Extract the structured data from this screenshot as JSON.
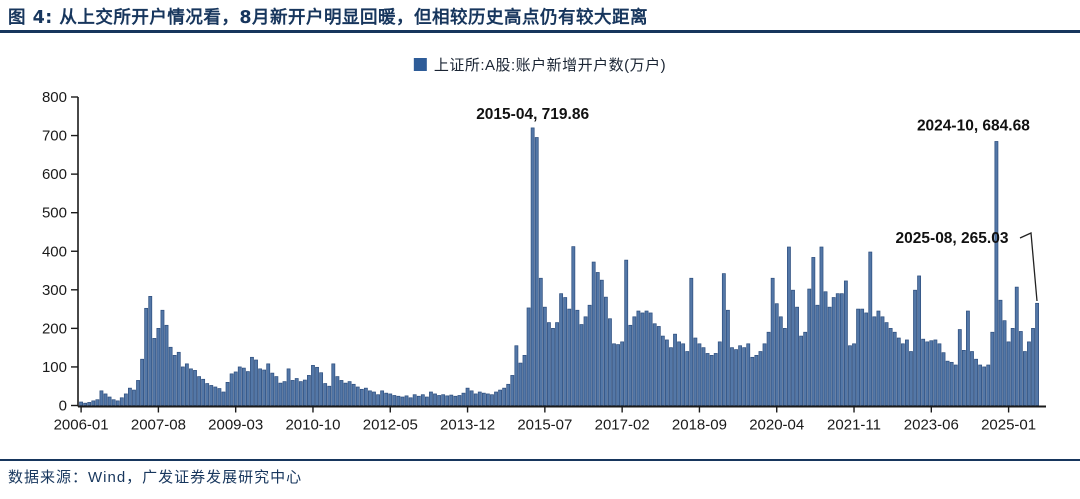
{
  "title": "图 4: 从上交所开户情况看，8月新开户明显回暖，但相较历史高点仍有较大距离",
  "legend": "上证所:A股:账户新增开户数(万户)",
  "source": "数据来源：Wind，广发证券发展研究中心",
  "accent_color": "#17365d",
  "chart_data": {
    "type": "bar",
    "title": "",
    "series_name": "上证所:A股:账户新增开户数(万户)",
    "unit": "万户",
    "start_month": "2006-01",
    "end_month": "2025-08",
    "ylim": [
      0,
      800
    ],
    "y_ticks": [
      0,
      100,
      200,
      300,
      400,
      500,
      600,
      700,
      800
    ],
    "x_tick_labels": [
      "2006-01",
      "2007-08",
      "2009-03",
      "2010-10",
      "2012-05",
      "2013-12",
      "2015-07",
      "2017-02",
      "2018-09",
      "2020-04",
      "2021-11",
      "2023-06",
      "2025-01"
    ],
    "x_tick_indices": [
      0,
      19,
      38,
      57,
      76,
      95,
      114,
      133,
      152,
      171,
      190,
      209,
      228
    ],
    "grid": false,
    "legend_position": "top-center",
    "bar_color": "#5377a7",
    "bar_edge_color": "#2c4d7d",
    "values": [
      9,
      6,
      8,
      12,
      15,
      38,
      30,
      22,
      15,
      12,
      20,
      30,
      45,
      40,
      65,
      120,
      252,
      283,
      174,
      200,
      247,
      208,
      151,
      130,
      138,
      100,
      108,
      95,
      91,
      75,
      68,
      57,
      52,
      48,
      44,
      35,
      60,
      82,
      87,
      100,
      97,
      88,
      125,
      118,
      95,
      92,
      108,
      84,
      75,
      58,
      62,
      95,
      65,
      70,
      62,
      66,
      78,
      104,
      99,
      85,
      57,
      50,
      108,
      75,
      65,
      58,
      62,
      55,
      48,
      42,
      45,
      38,
      35,
      28,
      38,
      32,
      30,
      26,
      24,
      22,
      25,
      20,
      28,
      24,
      28,
      22,
      35,
      30,
      26,
      28,
      25,
      27,
      24,
      26,
      32,
      45,
      38,
      30,
      35,
      32,
      30,
      28,
      35,
      40,
      45,
      55,
      78,
      155,
      110,
      130,
      253,
      719.86,
      695,
      330,
      255,
      215,
      200,
      215,
      290,
      280,
      250,
      412,
      247,
      210,
      230,
      260,
      372,
      345,
      325,
      281,
      225,
      160,
      158,
      165,
      377,
      208,
      230,
      245,
      240,
      245,
      240,
      212,
      205,
      180,
      170,
      150,
      185,
      165,
      160,
      140,
      330,
      175,
      160,
      150,
      135,
      130,
      135,
      165,
      342,
      247,
      150,
      145,
      155,
      150,
      160,
      125,
      130,
      140,
      160,
      190,
      330,
      264,
      230,
      200,
      411,
      299,
      255,
      180,
      190,
      302,
      384,
      260,
      411,
      295,
      255,
      280,
      290,
      290,
      323,
      155,
      160,
      250,
      250,
      240,
      398,
      230,
      245,
      230,
      215,
      200,
      190,
      175,
      160,
      170,
      140,
      299,
      336,
      172,
      165,
      168,
      170,
      160,
      137,
      115,
      112,
      105,
      197,
      143,
      245,
      140,
      120,
      105,
      100,
      105,
      190,
      684.68,
      273,
      220,
      165,
      200,
      307,
      192,
      140,
      165,
      200,
      265.03
    ],
    "annotations": [
      {
        "label": "2015-04, 719.86",
        "month": "2015-04",
        "value": 719.86
      },
      {
        "label": "2024-10, 684.68",
        "month": "2024-10",
        "value": 684.68
      },
      {
        "label": "2025-08, 265.03",
        "month": "2025-08",
        "value": 265.03
      }
    ]
  }
}
